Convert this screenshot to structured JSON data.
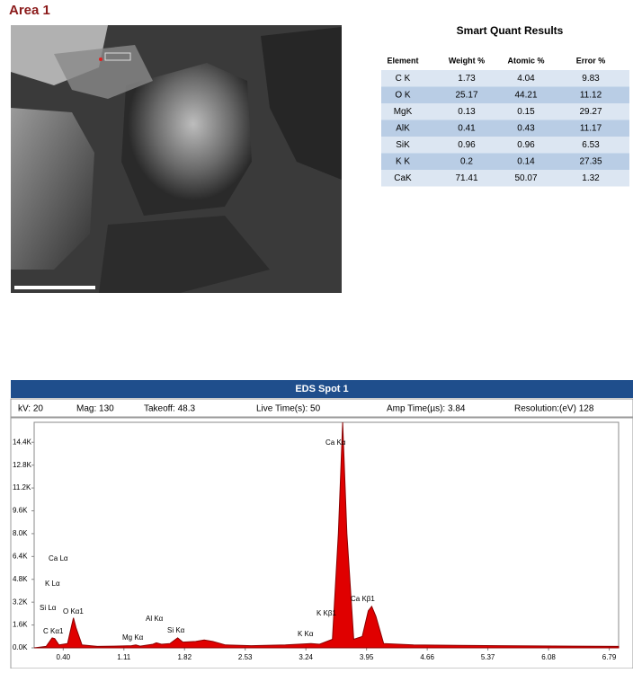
{
  "title": "Area 1",
  "table": {
    "title": "Smart Quant Results",
    "header": [
      "Element",
      "Weight %",
      "Atomic %",
      "Error %"
    ],
    "rows": [
      [
        "C K",
        1.73,
        4.04,
        9.83
      ],
      [
        "O K",
        25.17,
        44.21,
        11.12
      ],
      [
        "MgK",
        0.13,
        0.15,
        29.27
      ],
      [
        "AlK",
        0.41,
        0.43,
        11.17
      ],
      [
        "SiK",
        0.96,
        0.96,
        6.53
      ],
      [
        "K K",
        0.2,
        0.14,
        27.35
      ],
      [
        "CaK",
        71.41,
        50.07,
        1.32
      ]
    ]
  },
  "spectrum_header": "EDS Spot 1",
  "info": [
    "kV: 20",
    "Mag: 130",
    "Takeoff: 48.3",
    "Live Time(s): 50",
    "Amp Time(µs): 3.84",
    "Resolution:(eV) 128"
  ],
  "chart_data": {
    "type": "area",
    "color": "#e00000",
    "line_color": "#8b0000",
    "x": [
      0.06,
      0.2,
      0.27,
      0.3,
      0.35,
      0.45,
      0.5,
      0.52,
      0.55,
      0.62,
      0.8,
      1.0,
      1.2,
      1.25,
      1.3,
      1.45,
      1.49,
      1.55,
      1.65,
      1.74,
      1.8,
      1.95,
      2.05,
      2.15,
      2.3,
      2.6,
      3.0,
      3.3,
      3.4,
      3.55,
      3.62,
      3.67,
      3.72,
      3.8,
      3.9,
      3.97,
      4.01,
      4.06,
      4.15,
      4.5,
      5.5,
      6.9
    ],
    "values": [
      0,
      100,
      700,
      650,
      200,
      300,
      1600,
      2100,
      1400,
      200,
      100,
      120,
      150,
      200,
      120,
      250,
      350,
      250,
      300,
      700,
      400,
      450,
      550,
      450,
      200,
      150,
      200,
      300,
      250,
      600,
      8000,
      15800,
      8000,
      600,
      800,
      2600,
      2900,
      2200,
      300,
      200,
      150,
      100
    ],
    "xlim": [
      0.06,
      6.9
    ],
    "ylim": [
      0,
      15800
    ],
    "xticks": [
      {
        "value": 0.4,
        "label": "0.40"
      },
      1.11,
      1.82,
      2.53,
      3.24,
      3.95,
      4.66,
      5.37,
      6.08,
      6.79
    ],
    "yticks": [
      {
        "value": 0,
        "label": "0.0K"
      },
      {
        "value": 1600,
        "label": "1.6K"
      },
      {
        "value": 3200,
        "label": "3.2K"
      },
      {
        "value": 4800,
        "label": "4.8K"
      },
      {
        "value": 6400,
        "label": "6.4K"
      },
      {
        "value": 8000,
        "label": "8.0K"
      },
      {
        "value": 9600,
        "label": "9.6K"
      },
      {
        "value": 11200,
        "label": "11.2K"
      },
      {
        "value": 12800,
        "label": "12.8K"
      },
      {
        "value": 14400,
        "label": "14.4K"
      }
    ],
    "annotations": [
      "Ca Kα",
      "Ca Lα",
      "K Lα",
      "Si Lα",
      "O Kα1",
      "C Kα1",
      "Al Kα",
      "Si Kα",
      "Mg Kα",
      "K Kα",
      "K Kβ1",
      "Ca Kβ1"
    ]
  }
}
